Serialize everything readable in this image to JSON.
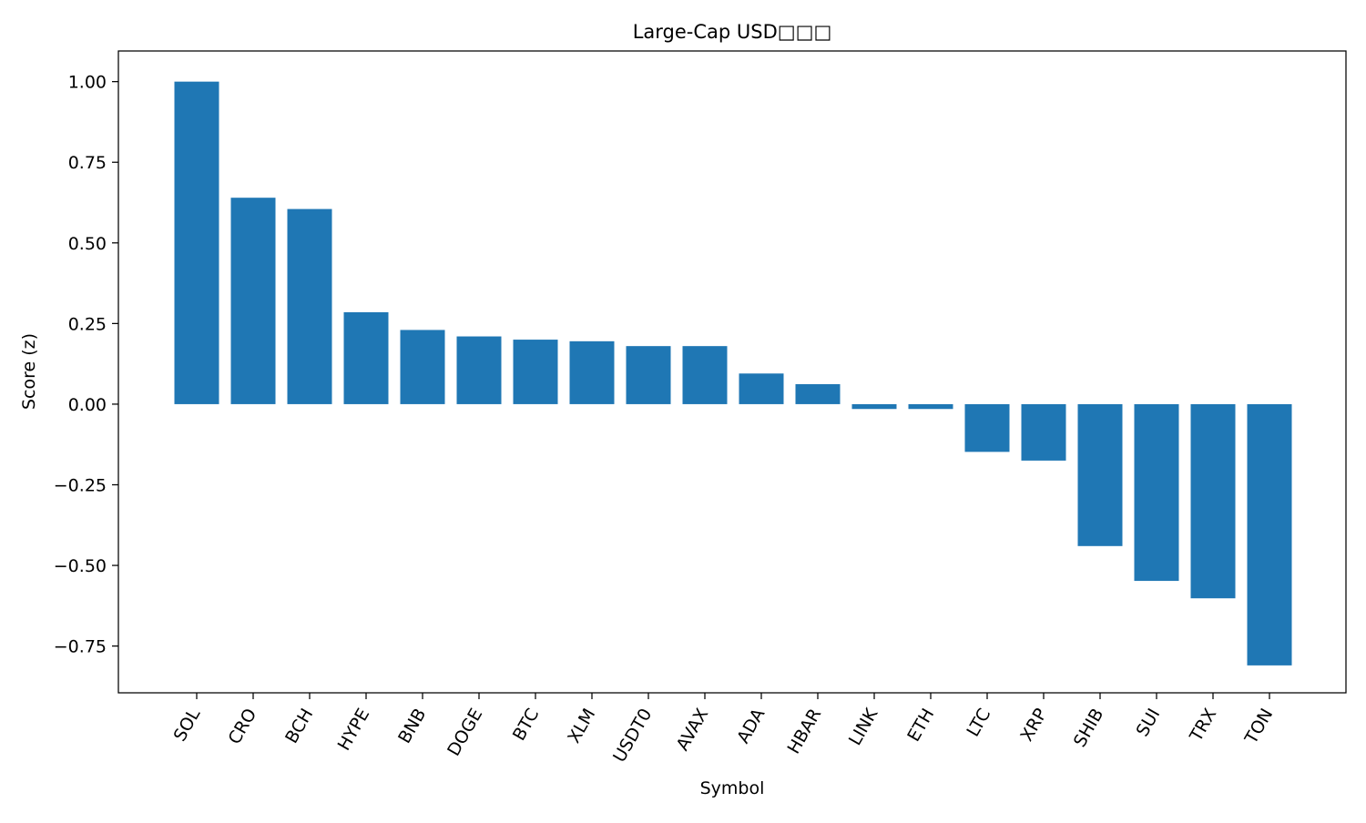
{
  "chart_data": {
    "type": "bar",
    "title": "Large-Cap USD□□□",
    "xlabel": "Symbol",
    "ylabel": "Score (z)",
    "categories": [
      "SOL",
      "CRO",
      "BCH",
      "HYPE",
      "BNB",
      "DOGE",
      "BTC",
      "XLM",
      "USDT0",
      "AVAX",
      "ADA",
      "HBAR",
      "LINK",
      "ETH",
      "LTC",
      "XRP",
      "SHIB",
      "SUI",
      "TRX",
      "TON"
    ],
    "values": [
      1.0,
      0.64,
      0.605,
      0.285,
      0.23,
      0.21,
      0.2,
      0.195,
      0.18,
      0.18,
      0.095,
      0.062,
      -0.015,
      -0.015,
      -0.148,
      -0.175,
      -0.44,
      -0.548,
      -0.602,
      -0.81
    ],
    "ylim": [
      -0.895,
      1.095
    ],
    "yticks": [
      -0.75,
      -0.5,
      -0.25,
      0.0,
      0.25,
      0.5,
      0.75,
      1.0
    ],
    "ytick_labels": [
      "−0.75",
      "−0.50",
      "−0.25",
      "0.00",
      "0.25",
      "0.50",
      "0.75",
      "1.00"
    ],
    "grid": false,
    "bar_color": "#1f77b4"
  }
}
